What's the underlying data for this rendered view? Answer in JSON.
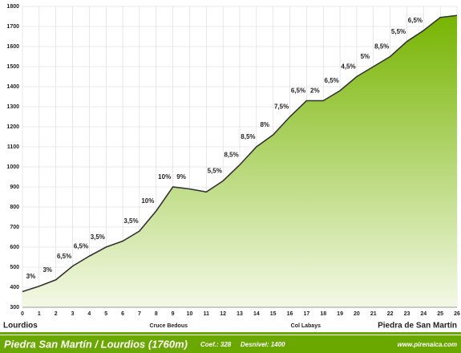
{
  "chart_data": {
    "type": "area",
    "title": "Piedra San Martín / Lourdios (1760m)",
    "coef": "Coef.: 328",
    "desnivel": "Desnivel: 1400",
    "source": "www.pirenaica.com",
    "landmarks": [
      "Lourdios",
      "Cruce Bedous",
      "Col Labays",
      "Piedra de San Martín"
    ],
    "x": [
      0,
      1,
      2,
      3,
      4,
      5,
      6,
      7,
      8,
      9,
      10,
      11,
      12,
      13,
      14,
      15,
      16,
      17,
      18,
      19,
      20,
      21,
      22,
      23,
      24,
      25,
      26
    ],
    "values": [
      378,
      405,
      437,
      505,
      555,
      600,
      630,
      680,
      780,
      900,
      890,
      875,
      930,
      1010,
      1100,
      1160,
      1250,
      1330,
      1330,
      1380,
      1450,
      1500,
      1550,
      1625,
      1680,
      1745,
      1755
    ],
    "gradients": [
      "3%",
      "3%",
      "6,5%",
      "6,5%",
      "3,5%",
      null,
      "3,5%",
      "10%",
      "10%",
      "9%",
      null,
      "5,5%",
      "8,5%",
      "8,5%",
      "8%",
      "7,5%",
      "6,5%",
      "2%",
      "6,5%",
      "4,5%",
      "5%",
      "8,5%",
      "5,5%",
      "6,5%",
      null,
      null
    ],
    "color": "#7ab800",
    "xlim": [
      0,
      26
    ],
    "xticks": [
      0,
      1,
      2,
      3,
      4,
      5,
      6,
      7,
      8,
      9,
      10,
      11,
      12,
      13,
      14,
      15,
      16,
      17,
      18,
      19,
      20,
      21,
      22,
      23,
      24,
      25,
      26
    ],
    "ylim": [
      300,
      1800
    ],
    "yticks": [
      300,
      400,
      500,
      600,
      700,
      800,
      900,
      1000,
      1100,
      1200,
      1300,
      1400,
      1500,
      1600,
      1700,
      1800
    ],
    "grid": true
  }
}
